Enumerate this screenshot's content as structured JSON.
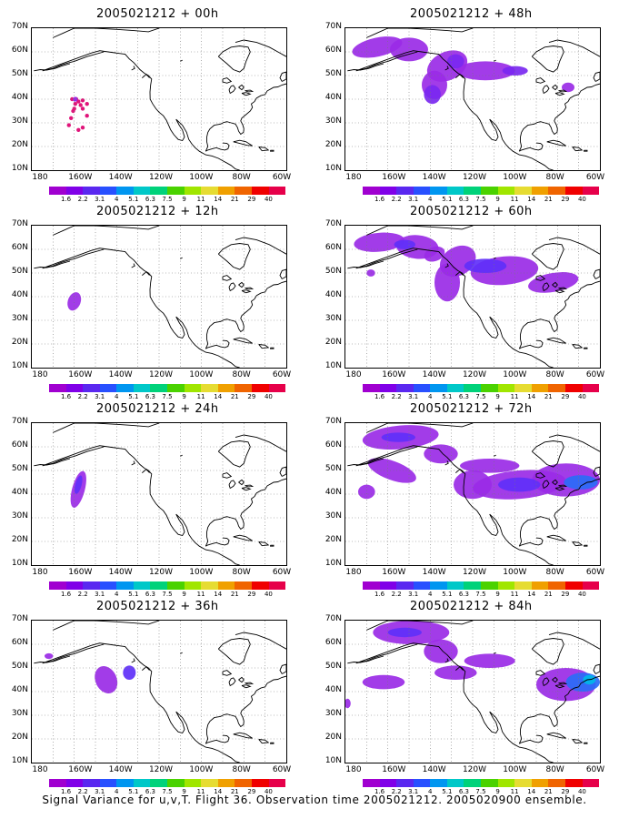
{
  "panels": [
    {
      "title": "2005021212 + 00h"
    },
    {
      "title": "2005021212 + 48h"
    },
    {
      "title": "2005021212 + 12h"
    },
    {
      "title": "2005021212 + 60h"
    },
    {
      "title": "2005021212 + 24h"
    },
    {
      "title": "2005021212 + 72h"
    },
    {
      "title": "2005021212 + 36h"
    },
    {
      "title": "2005021212 + 84h"
    }
  ],
  "lat_labels": [
    "70N",
    "60N",
    "50N",
    "40N",
    "30N",
    "20N",
    "10N"
  ],
  "lon_labels": [
    "180",
    "160W",
    "140W",
    "120W",
    "100W",
    "80W",
    "60W"
  ],
  "colorbar": {
    "labels": [
      "1.6",
      "2.2",
      "3.1",
      "4",
      "5.1",
      "6.3",
      "7.5",
      "9",
      "11",
      "14",
      "21",
      "29",
      "40"
    ],
    "colors": [
      "#a000d0",
      "#8000e8",
      "#5a28f0",
      "#2850ff",
      "#0096f0",
      "#00c8c8",
      "#00d27a",
      "#4ad200",
      "#a0e600",
      "#e6dc32",
      "#f0a000",
      "#f06400",
      "#f00000",
      "#e6004a"
    ]
  },
  "caption": "Signal Variance for u,v,T. Flight 36. Observation time 2005021212. 2005020900 ensemble."
}
